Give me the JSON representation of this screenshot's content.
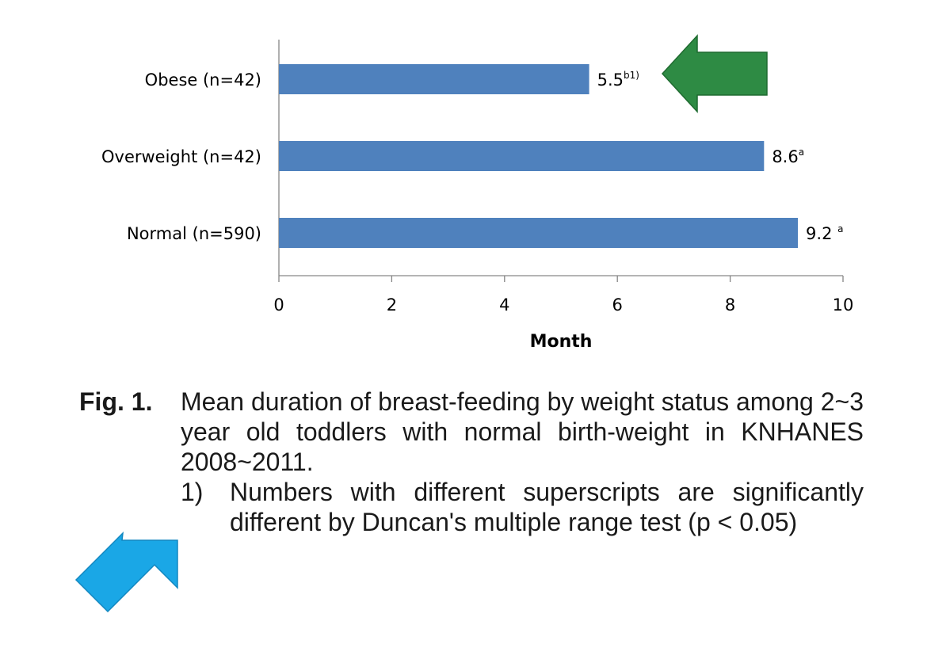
{
  "chart_data": {
    "type": "bar",
    "orientation": "horizontal",
    "categories": [
      "Obese (n=42)",
      "Overweight (n=42)",
      "Normal (n=590)"
    ],
    "values": [
      5.5,
      8.6,
      9.2
    ],
    "value_labels": [
      {
        "text": "5.5",
        "sup": "b1)"
      },
      {
        "text": "8.6",
        "sup": "a"
      },
      {
        "text": "9.2 ",
        "sup": "a"
      }
    ],
    "xlabel": "Month",
    "ylabel": "",
    "xlim": [
      0,
      10
    ],
    "x_ticks": [
      0,
      2,
      4,
      6,
      8,
      10
    ],
    "grid": false,
    "bar_color": "#4f81bd"
  },
  "annotations": {
    "green_arrow": {
      "color": "#2e8b44",
      "direction": "left",
      "points_to": "Obese (n=42)"
    },
    "blue_arrow": {
      "color": "#1aa7e6",
      "direction": "up-right",
      "points_to": "footnote 1)"
    }
  },
  "caption": {
    "fig_label": "Fig. 1.",
    "text": "Mean duration of breast-feeding by weight status among 2~3 year old toddlers with normal birth-weight in KNHANES 2008~2011.",
    "note_number": "1)",
    "note_text": "Numbers with different superscripts are significantly different by Duncan's multiple range test (p < 0.05)"
  }
}
